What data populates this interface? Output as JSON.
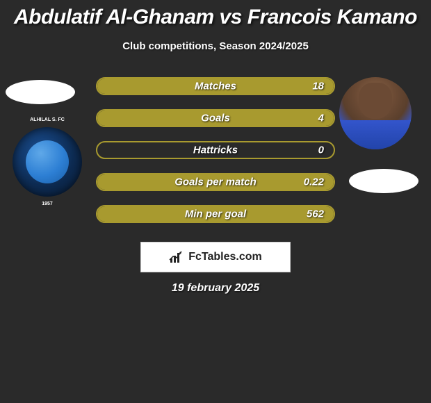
{
  "title": "Abdulatif Al-Ghanam vs Francois Kamano",
  "subtitle": "Club competitions, Season 2024/2025",
  "date": "19 february 2025",
  "logo_text": "FcTables.com",
  "left_badge": {
    "top_text": "ALHILAL S. FC",
    "year": "1957",
    "outer_color": "#0d2b52",
    "inner_color": "#2d7fd4"
  },
  "theme": {
    "bar_border": "#a89a2f",
    "bar_fill": "#a89a2f",
    "background": "#2a2a2a",
    "text_color": "#ffffff"
  },
  "bars": [
    {
      "label": "Matches",
      "value": "18",
      "fill_pct": 100,
      "fill_side": "full"
    },
    {
      "label": "Goals",
      "value": "4",
      "fill_pct": 100,
      "fill_side": "full"
    },
    {
      "label": "Hattricks",
      "value": "0",
      "fill_pct": 0,
      "fill_side": "none"
    },
    {
      "label": "Goals per match",
      "value": "0.22",
      "fill_pct": 100,
      "fill_side": "full"
    },
    {
      "label": "Min per goal",
      "value": "562",
      "fill_pct": 100,
      "fill_side": "full"
    }
  ]
}
